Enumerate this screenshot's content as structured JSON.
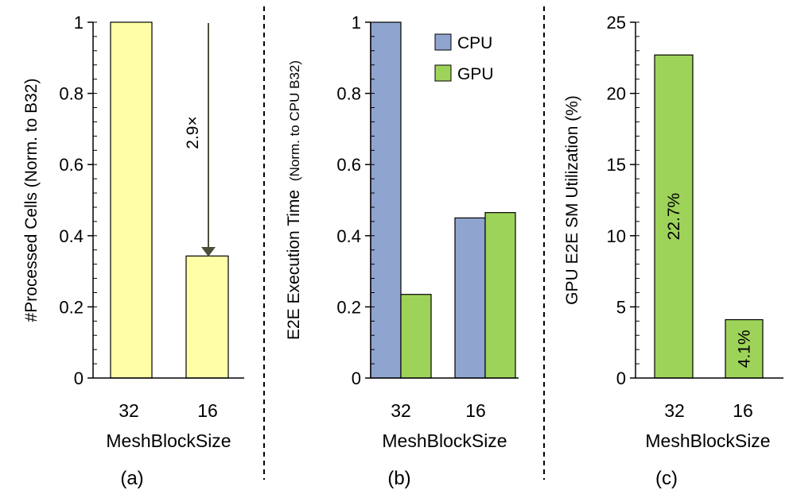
{
  "colors": {
    "bar_a": "#FFFFA8",
    "cpu": "#8FA4CF",
    "gpu": "#9ED35A",
    "arrow": "#4A4F3A",
    "axis": "#000000"
  },
  "chart_data": [
    {
      "type": "bar",
      "panel_label": "(a)",
      "categories": [
        "32",
        "16"
      ],
      "series": [
        {
          "values": [
            1.0,
            0.343
          ]
        }
      ],
      "ylabel": "#Processed Cells (Norm. to B32)",
      "xlabel": "MeshBlockSize",
      "ylim": [
        0,
        1
      ],
      "yticks": [
        "0",
        "0.2",
        "0.4",
        "0.6",
        "0.8",
        "1"
      ],
      "annotation": "2.9×",
      "grid": false
    },
    {
      "type": "bar",
      "panel_label": "(b)",
      "categories": [
        "32",
        "16"
      ],
      "series": [
        {
          "name": "CPU",
          "values": [
            1.0,
            0.45
          ]
        },
        {
          "name": "GPU",
          "values": [
            0.235,
            0.465
          ]
        }
      ],
      "ylabel_main": "E2E Execution Time",
      "ylabel_sub": "(Norm. to CPU B32)",
      "xlabel": "MeshBlockSize",
      "ylim": [
        0,
        1
      ],
      "yticks": [
        "0",
        "0.2",
        "0.4",
        "0.6",
        "0.8",
        "1"
      ],
      "legend_position": "top-right",
      "grid": false
    },
    {
      "type": "bar",
      "panel_label": "(c)",
      "categories": [
        "32",
        "16"
      ],
      "series": [
        {
          "values": [
            22.7,
            4.1
          ]
        }
      ],
      "data_labels": [
        "22.7%",
        "4.1%"
      ],
      "ylabel": "GPU E2E SM Utilization (%)",
      "xlabel": "MeshBlockSize",
      "ylim": [
        0,
        25
      ],
      "yticks": [
        "0",
        "5",
        "10",
        "15",
        "20",
        "25"
      ],
      "grid": false
    }
  ]
}
